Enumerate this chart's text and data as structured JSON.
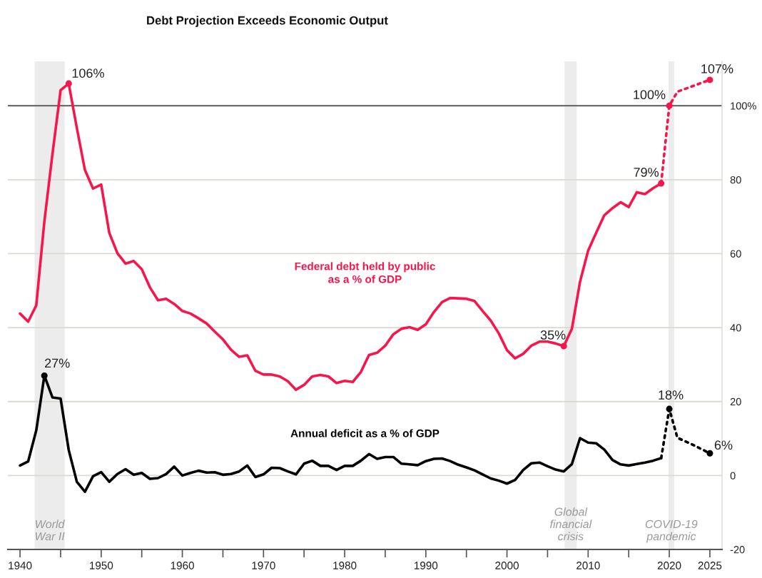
{
  "chart_data": {
    "type": "line",
    "title": "Debt Projection Exceeds Economic Output",
    "series": [
      {
        "name": "Federal debt held by public\nas a % of GDP",
        "color": "#f5174b",
        "line_style": "solid",
        "x": [
          1940,
          1941,
          1942,
          1943,
          1944,
          1945,
          1946,
          1947,
          1948,
          1949,
          1950,
          1951,
          1952,
          1953,
          1954,
          1955,
          1956,
          1957,
          1958,
          1959,
          1960,
          1961,
          1962,
          1963,
          1964,
          1965,
          1966,
          1967,
          1968,
          1969,
          1970,
          1971,
          1972,
          1973,
          1974,
          1975,
          1976,
          1977,
          1978,
          1979,
          1980,
          1981,
          1982,
          1983,
          1984,
          1985,
          1986,
          1987,
          1988,
          1989,
          1990,
          1991,
          1992,
          1993,
          1994,
          1995,
          1996,
          1997,
          1998,
          1999,
          2000,
          2001,
          2002,
          2003,
          2004,
          2005,
          2006,
          2007,
          2008,
          2009,
          2010,
          2011,
          2012,
          2013,
          2014,
          2015,
          2016,
          2017,
          2018,
          2019
        ],
        "values": [
          43.8,
          41.6,
          46.0,
          68.7,
          87,
          104.2,
          106,
          94,
          82.6,
          77.6,
          78.7,
          65.6,
          60.1,
          57.3,
          58.0,
          55.8,
          50.9,
          47.4,
          47.8,
          46.4,
          44.5,
          43.8,
          42.5,
          41.1,
          38.9,
          36.8,
          34.0,
          32.1,
          32.5,
          28.3,
          27.3,
          27.3,
          26.8,
          25.5,
          23.2,
          24.5,
          26.8,
          27.2,
          26.8,
          25.0,
          25.6,
          25.3,
          28.0,
          32.6,
          33.2,
          35.1,
          38.2,
          39.7,
          40.1,
          39.4,
          40.9,
          44.2,
          46.9,
          48.0,
          47.9,
          47.8,
          47.2,
          44.5,
          41.9,
          38.4,
          33.9,
          31.7,
          32.9,
          35.1,
          36.2,
          36.2,
          35.7,
          35,
          39.7,
          52.4,
          60.8,
          65.7,
          70.4,
          72.3,
          73.9,
          72.6,
          76.6,
          76.1,
          77.7,
          79
        ]
      },
      {
        "color": "#f5174b",
        "line_style": "dotted",
        "x": [
          2019,
          2020,
          2021,
          2022,
          2023,
          2024,
          2025
        ],
        "values": [
          79,
          100,
          103.8,
          104.6,
          105.4,
          106.2,
          107
        ]
      },
      {
        "name": "Annual deficit as a % of GDP",
        "color": "#000000",
        "line_style": "solid",
        "x": [
          1940,
          1941,
          1942,
          1943,
          1944,
          1945,
          1946,
          1947,
          1948,
          1949,
          1950,
          1951,
          1952,
          1953,
          1954,
          1955,
          1956,
          1957,
          1958,
          1959,
          1960,
          1961,
          1962,
          1963,
          1964,
          1965,
          1966,
          1967,
          1968,
          1969,
          1970,
          1971,
          1972,
          1973,
          1974,
          1975,
          1976,
          1977,
          1978,
          1979,
          1980,
          1981,
          1982,
          1983,
          1984,
          1985,
          1986,
          1987,
          1988,
          1989,
          1990,
          1991,
          1992,
          1993,
          1994,
          1995,
          1996,
          1997,
          1998,
          1999,
          2000,
          2001,
          2002,
          2003,
          2004,
          2005,
          2006,
          2007,
          2008,
          2009,
          2010,
          2011,
          2012,
          2013,
          2014,
          2015,
          2016,
          2017,
          2018,
          2019
        ],
        "values": [
          2.7,
          3.8,
          12.2,
          27,
          21.1,
          20.8,
          6.9,
          -1.7,
          -4.4,
          -0.2,
          0.9,
          -1.7,
          0.4,
          1.7,
          0.2,
          0.7,
          -0.9,
          -0.7,
          0.4,
          2.4,
          0.0,
          0.7,
          1.3,
          0.8,
          0.9,
          0.2,
          0.4,
          1.1,
          2.7,
          -0.4,
          0.3,
          2.1,
          2.0,
          1.1,
          0.3,
          3.2,
          4.0,
          2.6,
          2.6,
          1.5,
          2.6,
          2.6,
          4.0,
          5.8,
          4.5,
          5.0,
          5.0,
          3.2,
          3.0,
          2.8,
          3.9,
          4.5,
          4.6,
          3.9,
          2.9,
          2.2,
          1.4,
          0.3,
          -0.8,
          -1.4,
          -2.2,
          -1.2,
          1.5,
          3.3,
          3.5,
          2.5,
          1.6,
          1.1,
          3.1,
          10.1,
          8.9,
          8.7,
          7.0,
          4.2,
          3.0,
          2.7,
          3.1,
          3.5,
          4.0,
          4.7
        ]
      },
      {
        "color": "#000000",
        "line_style": "dotted",
        "x": [
          2019,
          2020,
          2021,
          2022,
          2023,
          2024,
          2025
        ],
        "values": [
          4.7,
          18,
          10.2,
          9.2,
          8.2,
          7.1,
          6
        ]
      },
      {
        "type": "scatter",
        "color": "#f5174b",
        "marker": "circle",
        "x": [
          1946,
          2007,
          2019,
          2020,
          2025
        ],
        "values": [
          106,
          35,
          79,
          100,
          107
        ],
        "value_labels": [
          "106%",
          "35%",
          "79%",
          "100%",
          "107%"
        ]
      },
      {
        "type": "scatter",
        "color": "#000000",
        "marker": "circle",
        "x": [
          1943,
          2020,
          2025
        ],
        "values": [
          27,
          18,
          6
        ],
        "value_labels": [
          "27%",
          "18%",
          "6%"
        ]
      }
    ],
    "xlim": [
      1938.5,
      2026.5
    ],
    "xticks": [
      1940,
      {
        "value": 1945,
        "label": null
      },
      1950,
      {
        "value": 1955,
        "label": null
      },
      1960,
      {
        "value": 1965,
        "label": null
      },
      1970,
      {
        "value": 1975,
        "label": null
      },
      1980,
      {
        "value": 1985,
        "label": null
      },
      1990,
      {
        "value": 1995,
        "label": null
      },
      2000,
      {
        "value": 2005,
        "label": null
      },
      2010,
      {
        "value": 2015,
        "label": null
      },
      2020,
      2025
    ],
    "ylim": [
      -20,
      112
    ],
    "yticks": [
      -20,
      0,
      20,
      40,
      60,
      80,
      {
        "value": 100,
        "label": "100%"
      }
    ],
    "grid": "y",
    "ref_lines": [
      {
        "axis": "y",
        "value": 100,
        "color": "#6e6e6e"
      }
    ],
    "bands": [
      {
        "axis": "x",
        "from": 1941.8,
        "to": 1945.5,
        "label": "World\nWar II",
        "color": "#ececec"
      },
      {
        "axis": "x",
        "from": 2007.1,
        "to": 2008.6,
        "label": "Global\nfinancial\ncrisis",
        "color": "#ececec"
      },
      {
        "axis": "x",
        "from": 2019.9,
        "to": 2020.6,
        "label": "COVID-19\npandemic",
        "color": "#ececec"
      }
    ]
  }
}
